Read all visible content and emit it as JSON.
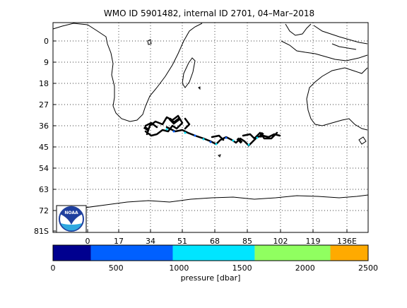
{
  "title": "WMO ID 5901482, internal ID 2701, 04–Mar–2018",
  "map": {
    "y_tick_labels": [
      "0",
      "9",
      "18",
      "27",
      "36",
      "45",
      "54",
      "63",
      "72",
      "81S"
    ],
    "x_tick_labels": [
      "0",
      "17",
      "34",
      "51",
      "68",
      "85",
      "102",
      "119",
      "136E"
    ],
    "grid": true
  },
  "colorbar": {
    "label": "pressure [dbar]",
    "tick_labels": [
      "0",
      "500",
      "1000",
      "1500",
      "2000",
      "2500"
    ],
    "range": [
      0,
      2500
    ],
    "bands": [
      {
        "from": 0,
        "to": 300,
        "color": "#00008f"
      },
      {
        "from": 300,
        "to": 950,
        "color": "#0060ff"
      },
      {
        "from": 950,
        "to": 1600,
        "color": "#00e5ff"
      },
      {
        "from": 1600,
        "to": 2200,
        "color": "#90ff60"
      },
      {
        "from": 2200,
        "to": 2500,
        "color": "#ffaa00"
      }
    ]
  },
  "logo": {
    "text": "NOAA"
  },
  "colors": {
    "track": "#000000",
    "coast": "#000000",
    "grid": "#000000"
  }
}
